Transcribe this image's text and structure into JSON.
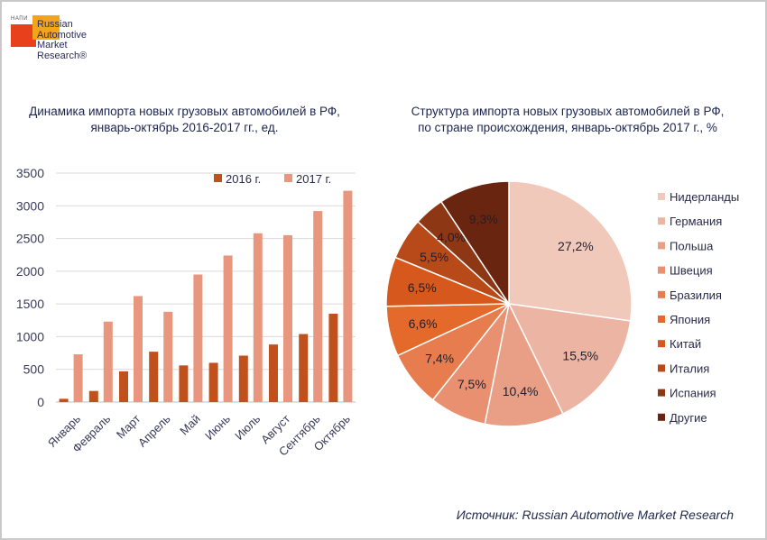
{
  "logo": {
    "small_text": "НАПИ",
    "line1": "Russian",
    "line2": "Automotive",
    "line3": "Market",
    "line4": "Research®"
  },
  "source": "Источник: Russian Automotive Market Research",
  "colors": {
    "series_2016": "#c0501c",
    "series_2017": "#e8977e",
    "grid": "#d9d9d9",
    "axis_text": "#3a3a5a"
  },
  "chart_data": [
    {
      "type": "bar",
      "title_line1": "Динамика импорта новых грузовых автомобилей в РФ,",
      "title_line2": "январь-октябрь 2016-2017 гг., ед.",
      "categories": [
        "Январь",
        "Февраль",
        "Март",
        "Апрель",
        "Май",
        "Июнь",
        "Июль",
        "Август",
        "Сентябрь",
        "Октябрь"
      ],
      "series": [
        {
          "name": "2016 г.",
          "values": [
            50,
            170,
            470,
            770,
            560,
            600,
            710,
            880,
            1040,
            1350
          ]
        },
        {
          "name": "2017 г.",
          "values": [
            730,
            1230,
            1620,
            1380,
            1950,
            2240,
            2580,
            2550,
            2920,
            3230
          ]
        }
      ],
      "ylim": [
        0,
        3500
      ],
      "yticks": [
        0,
        500,
        1000,
        1500,
        2000,
        2500,
        3000,
        3500
      ],
      "grid": true,
      "legend": "top-right"
    },
    {
      "type": "pie",
      "title_line1": "Структура импорта новых грузовых автомобилей в РФ,",
      "title_line2": "по стране происхождения, январь-октябрь 2017 г., %",
      "labels": [
        "Нидерланды",
        "Германия",
        "Польша",
        "Швеция",
        "Бразилия",
        "Япония",
        "Китай",
        "Италия",
        "Испания",
        "Другие"
      ],
      "values": [
        27.2,
        15.5,
        10.4,
        7.5,
        7.4,
        6.6,
        6.5,
        5.5,
        4.0,
        9.3
      ],
      "value_labels": [
        "27,2%",
        "15,5%",
        "10,4%",
        "7,5%",
        "7,4%",
        "6,6%",
        "6,5%",
        "5,5%",
        "4,0%",
        "9,3%"
      ],
      "colors": [
        "#f1c9bb",
        "#ecb4a2",
        "#e99f86",
        "#e8906f",
        "#e77d4f",
        "#e46a2b",
        "#d6581c",
        "#b74a18",
        "#8e3714",
        "#6a2510"
      ],
      "legend": "right"
    }
  ]
}
